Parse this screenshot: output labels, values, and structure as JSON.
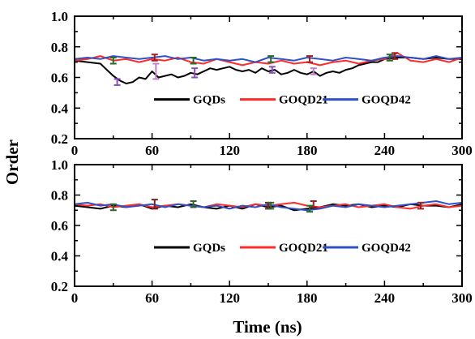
{
  "chart_data": {
    "type": "line",
    "xlabel": "Time (ns)",
    "ylabel": "Order",
    "legend_placement": "lower-right inside each panel",
    "grid": false,
    "panels": [
      {
        "xlim": [
          0,
          300
        ],
        "ylim": [
          0.2,
          1.0
        ],
        "x_ticks": [
          "0",
          "60",
          "120",
          "180",
          "240",
          "300"
        ],
        "y_ticks": [
          "0.2",
          "0.4",
          "0.6",
          "0.8",
          "1.0"
        ],
        "series": [
          {
            "name": "GQDs",
            "color": "#000000",
            "x": [
              0,
              10,
              20,
              25,
              30,
              35,
              40,
              45,
              50,
              55,
              60,
              65,
              70,
              75,
              80,
              85,
              90,
              95,
              100,
              105,
              110,
              115,
              120,
              125,
              130,
              135,
              140,
              145,
              150,
              155,
              160,
              165,
              170,
              175,
              180,
              185,
              190,
              195,
              200,
              205,
              210,
              215,
              220,
              225,
              230,
              235,
              240,
              250,
              260,
              270,
              280,
              290,
              300
            ],
            "y": [
              0.71,
              0.7,
              0.69,
              0.65,
              0.61,
              0.58,
              0.56,
              0.57,
              0.6,
              0.59,
              0.64,
              0.6,
              0.61,
              0.62,
              0.6,
              0.61,
              0.63,
              0.62,
              0.64,
              0.66,
              0.65,
              0.66,
              0.67,
              0.65,
              0.64,
              0.65,
              0.63,
              0.66,
              0.64,
              0.65,
              0.62,
              0.63,
              0.65,
              0.63,
              0.62,
              0.64,
              0.61,
              0.63,
              0.64,
              0.63,
              0.65,
              0.66,
              0.68,
              0.69,
              0.7,
              0.7,
              0.72,
              0.73,
              0.73,
              0.72,
              0.73,
              0.72,
              0.72
            ],
            "error_bars": [
              {
                "x": 33,
                "y": 0.57,
                "err": 0.02,
                "color": "#8a4fb8"
              },
              {
                "x": 63,
                "y": 0.64,
                "err": 0.05,
                "color": "#c080c8"
              },
              {
                "x": 93,
                "y": 0.63,
                "err": 0.03,
                "color": "#8a4fb8"
              },
              {
                "x": 153,
                "y": 0.65,
                "err": 0.02,
                "color": "#8a4fb8"
              },
              {
                "x": 185,
                "y": 0.64,
                "err": 0.02,
                "color": "#c080c8"
              }
            ]
          },
          {
            "name": "GOQD21",
            "color": "#ff2a2a",
            "x": [
              0,
              10,
              20,
              30,
              40,
              50,
              60,
              70,
              80,
              90,
              100,
              110,
              120,
              130,
              140,
              150,
              160,
              170,
              180,
              190,
              200,
              210,
              220,
              230,
              240,
              250,
              260,
              270,
              280,
              290,
              300
            ],
            "y": [
              0.71,
              0.72,
              0.74,
              0.71,
              0.72,
              0.7,
              0.72,
              0.71,
              0.73,
              0.7,
              0.69,
              0.72,
              0.7,
              0.68,
              0.7,
              0.69,
              0.71,
              0.69,
              0.7,
              0.68,
              0.7,
              0.71,
              0.69,
              0.71,
              0.72,
              0.76,
              0.71,
              0.7,
              0.72,
              0.7,
              0.73
            ],
            "error_bars": [
              {
                "x": 62,
                "y": 0.73,
                "err": 0.02,
                "color": "#a02020"
              },
              {
                "x": 182,
                "y": 0.72,
                "err": 0.02,
                "color": "#a02020"
              },
              {
                "x": 248,
                "y": 0.74,
                "err": 0.02,
                "color": "#a02020"
              }
            ]
          },
          {
            "name": "GOQD42",
            "color": "#3050c8",
            "x": [
              0,
              10,
              20,
              30,
              40,
              50,
              60,
              70,
              80,
              90,
              100,
              110,
              120,
              130,
              140,
              150,
              160,
              170,
              180,
              190,
              200,
              210,
              220,
              230,
              240,
              250,
              260,
              270,
              280,
              290,
              300
            ],
            "y": [
              0.72,
              0.73,
              0.72,
              0.74,
              0.73,
              0.72,
              0.73,
              0.74,
              0.72,
              0.73,
              0.71,
              0.72,
              0.71,
              0.72,
              0.7,
              0.73,
              0.72,
              0.71,
              0.73,
              0.72,
              0.71,
              0.73,
              0.72,
              0.71,
              0.73,
              0.74,
              0.73,
              0.72,
              0.74,
              0.72,
              0.73
            ],
            "error_bars": [
              {
                "x": 30,
                "y": 0.71,
                "err": 0.02,
                "color": "#2a6a2a"
              },
              {
                "x": 92,
                "y": 0.71,
                "err": 0.02,
                "color": "#2a6a2a"
              },
              {
                "x": 152,
                "y": 0.72,
                "err": 0.02,
                "color": "#2a6a2a"
              },
              {
                "x": 244,
                "y": 0.73,
                "err": 0.02,
                "color": "#2a6a2a"
              }
            ]
          }
        ]
      },
      {
        "xlim": [
          0,
          300
        ],
        "ylim": [
          0.2,
          1.0
        ],
        "x_ticks": [
          "0",
          "60",
          "120",
          "180",
          "240",
          "300"
        ],
        "y_ticks": [
          "0.2",
          "0.4",
          "0.6",
          "0.8",
          "1.0"
        ],
        "series": [
          {
            "name": "GQDs",
            "color": "#000000",
            "x": [
              0,
              10,
              20,
              30,
              40,
              50,
              60,
              70,
              80,
              90,
              100,
              110,
              120,
              130,
              140,
              150,
              160,
              170,
              180,
              190,
              200,
              210,
              220,
              230,
              240,
              250,
              260,
              270,
              280,
              290,
              300
            ],
            "y": [
              0.73,
              0.72,
              0.71,
              0.73,
              0.72,
              0.74,
              0.71,
              0.73,
              0.72,
              0.74,
              0.72,
              0.71,
              0.73,
              0.71,
              0.74,
              0.72,
              0.73,
              0.7,
              0.71,
              0.72,
              0.74,
              0.73,
              0.74,
              0.72,
              0.73,
              0.72,
              0.74,
              0.73,
              0.73,
              0.72,
              0.74
            ],
            "error_bars": [
              {
                "x": 62,
                "y": 0.74,
                "err": 0.03,
                "color": "#7a2020"
              },
              {
                "x": 150,
                "y": 0.73,
                "err": 0.02,
                "color": "#7a2020"
              }
            ]
          },
          {
            "name": "GOQD21",
            "color": "#ff2a2a",
            "x": [
              0,
              10,
              20,
              30,
              40,
              50,
              60,
              70,
              80,
              90,
              100,
              110,
              120,
              130,
              140,
              150,
              160,
              170,
              180,
              190,
              200,
              210,
              220,
              230,
              240,
              250,
              260,
              270,
              280,
              290,
              300
            ],
            "y": [
              0.74,
              0.73,
              0.74,
              0.72,
              0.73,
              0.74,
              0.72,
              0.73,
              0.74,
              0.73,
              0.72,
              0.74,
              0.73,
              0.72,
              0.74,
              0.73,
              0.74,
              0.75,
              0.73,
              0.72,
              0.73,
              0.74,
              0.72,
              0.73,
              0.74,
              0.72,
              0.71,
              0.73,
              0.74,
              0.72,
              0.73
            ],
            "error_bars": [
              {
                "x": 185,
                "y": 0.74,
                "err": 0.02,
                "color": "#a02020"
              },
              {
                "x": 268,
                "y": 0.73,
                "err": 0.02,
                "color": "#a02020"
              }
            ]
          },
          {
            "name": "GOQD42",
            "color": "#3050c8",
            "x": [
              0,
              10,
              20,
              30,
              40,
              50,
              60,
              70,
              80,
              90,
              100,
              110,
              120,
              130,
              140,
              150,
              160,
              170,
              180,
              190,
              200,
              210,
              220,
              230,
              240,
              250,
              260,
              270,
              280,
              290,
              300
            ],
            "y": [
              0.74,
              0.75,
              0.73,
              0.74,
              0.72,
              0.73,
              0.74,
              0.72,
              0.74,
              0.73,
              0.72,
              0.73,
              0.71,
              0.73,
              0.72,
              0.74,
              0.72,
              0.71,
              0.7,
              0.71,
              0.73,
              0.72,
              0.74,
              0.73,
              0.72,
              0.73,
              0.74,
              0.75,
              0.76,
              0.74,
              0.75
            ],
            "error_bars": [
              {
                "x": 30,
                "y": 0.72,
                "err": 0.02,
                "color": "#2a6a2a"
              },
              {
                "x": 92,
                "y": 0.74,
                "err": 0.02,
                "color": "#2a6a2a"
              },
              {
                "x": 152,
                "y": 0.73,
                "err": 0.02,
                "color": "#2a6a2a"
              },
              {
                "x": 182,
                "y": 0.71,
                "err": 0.02,
                "color": "#2a6a2a"
              }
            ]
          }
        ]
      }
    ]
  }
}
